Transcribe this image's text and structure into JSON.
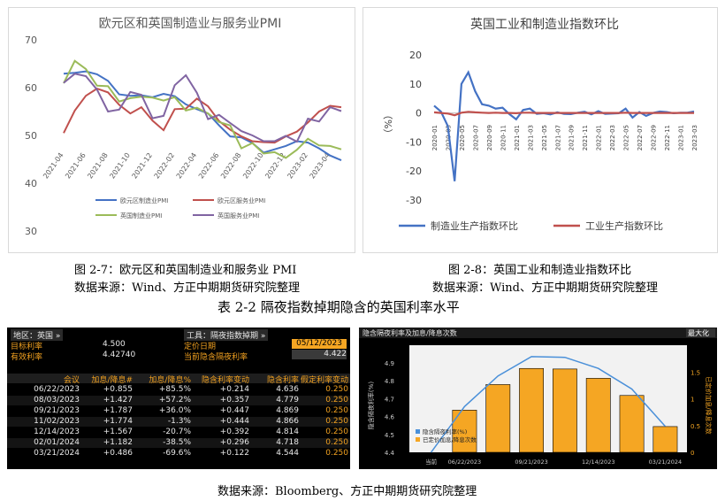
{
  "chart1": {
    "title": "欧元区和英国制造业与服务业PMI",
    "yticks": [
      "70",
      "60",
      "50",
      "40",
      "30"
    ],
    "xticks": [
      "2021-04",
      "2021-06",
      "2021-08",
      "2021-10",
      "2021-12",
      "2022-02",
      "2022-04",
      "2022-06",
      "2022-08",
      "2022-10",
      "2022-12",
      "2023-02",
      "2023-04"
    ],
    "legend": [
      "欧元区制造业PMI",
      "欧元区服务业PMI",
      "英国制造业PMI",
      "英国服务业PMI"
    ],
    "colors": [
      "#4472c4",
      "#c0504d",
      "#9bbb59",
      "#8064a2"
    ],
    "caption": "图 2-7：欧元区和英国制造业和服务业 PMI",
    "source": "数据来源：Wind、方正中期期货研究院整理"
  },
  "chart2": {
    "title": "英国工业和制造业指数环比",
    "ylabel": "（%）",
    "yticks": [
      "20",
      "10",
      "0",
      "-10",
      "-20",
      "-30"
    ],
    "xticks": [
      "2020-01",
      "2020-03",
      "2020-05",
      "2020-07",
      "2020-09",
      "2020-11",
      "2021-01",
      "2021-03",
      "2021-05",
      "2021-07",
      "2021-09",
      "2021-11",
      "2022-01",
      "2022-03",
      "2022-05",
      "2022-07",
      "2022-09",
      "2022-11",
      "2023-01",
      "2023-03"
    ],
    "legend": [
      "制造业生产指数环比",
      "工业生产指数环比"
    ],
    "colors": [
      "#4472c4",
      "#c0504d"
    ],
    "caption": "图 2-8：英国工业和制造业指数环比",
    "source": "数据来源：Wind、方正中期期货研究院整理"
  },
  "table_caption": "表 2-2 隔夜指数掉期隐含的英国利率水平",
  "bb_table": {
    "region_label": "地区：英国 »",
    "tool_label": "工具：隔夜指数掉期 »",
    "target_label": "目标利率",
    "target_value": "4.500",
    "effective_label": "有效利率",
    "effective_value": "4.42740",
    "pricing_date_label": "定价日期",
    "pricing_date_value": "05/12/2023",
    "implied_label": "当前隐含隔夜利率",
    "implied_value": "4.422",
    "columns": [
      "会议",
      "加息/降息#",
      "加息/降息%",
      "隐含利率变动",
      "隐含利率",
      "假定利率变动"
    ],
    "rows": [
      [
        "06/22/2023",
        "+0.855",
        "+85.5%",
        "+0.214",
        "4.636",
        "0.250"
      ],
      [
        "08/03/2023",
        "+1.427",
        "+57.2%",
        "+0.357",
        "4.779",
        "0.250"
      ],
      [
        "09/21/2023",
        "+1.787",
        "+36.0%",
        "+0.447",
        "4.869",
        "0.250"
      ],
      [
        "11/02/2023",
        "+1.774",
        "-1.3%",
        "+0.444",
        "4.866",
        "0.250"
      ],
      [
        "12/14/2023",
        "+1.567",
        "-20.7%",
        "+0.392",
        "4.814",
        "0.250"
      ],
      [
        "02/01/2024",
        "+1.182",
        "-38.5%",
        "+0.296",
        "4.718",
        "0.250"
      ],
      [
        "03/21/2024",
        "+0.486",
        "-69.6%",
        "+0.122",
        "4.544",
        "0.250"
      ]
    ]
  },
  "bb_chart": {
    "title": "隐含隔夜利率及加息/降息次数",
    "maximize": "最大化",
    "ylabel_left": "隐含隔夜利率(%)",
    "ylabel_right": "已定价加息/降息次数",
    "yticks_left": [
      "4.9",
      "4.8",
      "4.7",
      "4.6",
      "4.5",
      "4.4"
    ],
    "yticks_right": [
      "1.5",
      "1",
      "0.5",
      "0"
    ],
    "xticks": [
      "当前",
      "06/22/2023",
      "09/21/2023",
      "12/14/2023",
      "03/21/2024"
    ],
    "legend": [
      "隐含隔夜利率(%)",
      "已定价加息/降息次数"
    ],
    "bar_color": "#f5a623",
    "line_color": "#4a90d9"
  },
  "footer_source": "数据来源：Bloomberg、方正中期期货研究院整理",
  "chart_data": [
    {
      "type": "line",
      "title": "欧元区和英国制造业与服务业PMI",
      "x": [
        "2021-04",
        "2021-05",
        "2021-06",
        "2021-07",
        "2021-08",
        "2021-09",
        "2021-10",
        "2021-11",
        "2021-12",
        "2022-01",
        "2022-02",
        "2022-03",
        "2022-04",
        "2022-05",
        "2022-06",
        "2022-07",
        "2022-08",
        "2022-09",
        "2022-10",
        "2022-11",
        "2022-12",
        "2023-01",
        "2023-02",
        "2023-03",
        "2023-04",
        "2023-05"
      ],
      "ylim": [
        30,
        70
      ],
      "series": [
        {
          "name": "欧元区制造业PMI",
          "values": [
            62.9,
            63.1,
            63.4,
            62.8,
            61.4,
            58.6,
            58.3,
            58.4,
            58.0,
            58.7,
            58.2,
            56.5,
            55.5,
            54.6,
            52.1,
            49.8,
            49.6,
            48.4,
            46.4,
            47.1,
            47.8,
            48.8,
            48.5,
            47.3,
            45.8,
            44.8
          ]
        },
        {
          "name": "欧元区服务业PMI",
          "values": [
            50.5,
            55.2,
            58.3,
            59.8,
            59.0,
            56.4,
            54.6,
            55.9,
            53.1,
            51.1,
            55.5,
            55.6,
            57.7,
            56.1,
            53.0,
            51.2,
            49.8,
            48.8,
            48.6,
            48.5,
            49.8,
            50.8,
            52.7,
            55.0,
            56.2,
            55.9
          ]
        },
        {
          "name": "英国制造业PMI",
          "values": [
            60.9,
            65.6,
            63.9,
            60.4,
            60.3,
            57.1,
            57.8,
            58.1,
            57.9,
            57.3,
            58.0,
            55.2,
            55.8,
            54.6,
            52.8,
            52.1,
            47.3,
            48.4,
            46.2,
            46.5,
            45.3,
            47.0,
            49.3,
            47.9,
            47.8,
            47.1
          ]
        },
        {
          "name": "英国服务业PMI",
          "values": [
            61.0,
            62.9,
            62.4,
            59.6,
            55.0,
            55.4,
            59.1,
            58.5,
            53.6,
            54.1,
            60.5,
            62.6,
            58.9,
            53.4,
            54.3,
            52.6,
            50.9,
            50.0,
            48.8,
            48.8,
            49.9,
            48.7,
            53.5,
            52.9,
            55.9,
            55.1
          ]
        }
      ]
    },
    {
      "type": "line",
      "title": "英国工业和制造业指数环比",
      "ylabel": "（%）",
      "x": [
        "2020-01",
        "2020-02",
        "2020-03",
        "2020-04",
        "2020-05",
        "2020-06",
        "2020-07",
        "2020-08",
        "2020-09",
        "2020-10",
        "2020-11",
        "2020-12",
        "2021-01",
        "2021-02",
        "2021-03",
        "2021-04",
        "2021-05",
        "2021-06",
        "2021-07",
        "2021-08",
        "2021-09",
        "2021-10",
        "2021-11",
        "2021-12",
        "2022-01",
        "2022-02",
        "2022-03",
        "2022-04",
        "2022-05",
        "2022-06",
        "2022-07",
        "2022-08",
        "2022-09",
        "2022-10",
        "2022-11",
        "2022-12",
        "2023-01",
        "2023-02",
        "2023-03"
      ],
      "ylim": [
        -30,
        20
      ],
      "series": [
        {
          "name": "制造业生产指数环比",
          "values": [
            2.5,
            0.5,
            -4.5,
            -23.5,
            10.0,
            14.0,
            7.5,
            3.0,
            2.5,
            1.5,
            1.8,
            -0.4,
            -2.2,
            1.0,
            1.5,
            -0.3,
            -0.1,
            -0.5,
            0.2,
            -0.3,
            -0.4,
            0.1,
            0.4,
            -0.5,
            0.6,
            -0.3,
            -0.2,
            -0.1,
            1.5,
            -1.6,
            0.3,
            -1.0,
            0.0,
            0.5,
            0.3,
            -0.1,
            0.1,
            0.1,
            0.5
          ]
        },
        {
          "name": "工业生产指数环比",
          "values": [
            0.2,
            0.0,
            -0.2,
            -0.8,
            0.1,
            0.4,
            0.2,
            0.1,
            0.0,
            0.1,
            0.0,
            0.0,
            -0.1,
            0.1,
            0.1,
            0.0,
            0.0,
            0.0,
            0.0,
            0.0,
            0.0,
            0.0,
            0.0,
            0.0,
            0.0,
            0.0,
            0.0,
            0.0,
            0.1,
            0.0,
            0.0,
            0.0,
            0.0,
            0.0,
            0.0,
            0.0,
            0.0,
            0.0,
            0.0
          ]
        }
      ]
    },
    {
      "type": "bar",
      "title": "隐含隔夜利率及加息/降息次数",
      "categories": [
        "当前",
        "06/22/2023",
        "08/03/2023",
        "09/21/2023",
        "11/02/2023",
        "12/14/2023",
        "02/01/2024",
        "03/21/2024"
      ],
      "ylim": [
        4.4,
        4.9
      ],
      "ylim_right": [
        0,
        2.0
      ],
      "series": [
        {
          "name": "隐含隔夜利率(%)",
          "values": [
            4.422,
            4.636,
            4.779,
            4.869,
            4.866,
            4.814,
            4.718,
            4.544
          ]
        },
        {
          "name": "已定价加息/降息次数",
          "values": [
            0,
            0.855,
            1.427,
            1.787,
            1.774,
            1.567,
            1.182,
            0.486
          ]
        }
      ]
    }
  ]
}
